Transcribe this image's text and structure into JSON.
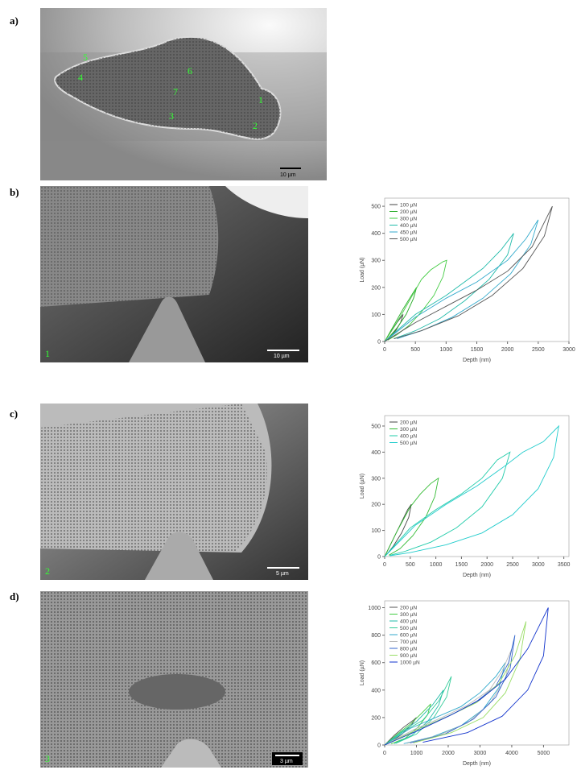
{
  "panels": [
    {
      "label": "a)",
      "scale_bar": "10 µm",
      "markers": [
        "5",
        "4",
        "6",
        "7",
        "3",
        "1",
        "2"
      ]
    },
    {
      "label": "b)",
      "scale_bar": "10 µm",
      "marker": "1"
    },
    {
      "label": "c)",
      "scale_bar": "5 µm",
      "marker": "2"
    },
    {
      "label": "d)",
      "scale_bar": "3 µm",
      "marker": "3"
    }
  ],
  "chart_data": [
    {
      "type": "line",
      "x_label": "Depth (nm)",
      "y_label": "Load (µN)",
      "xlim": [
        0,
        3000
      ],
      "ylim": [
        0,
        530
      ],
      "xticks": [
        0,
        500,
        1000,
        1500,
        2000,
        2500,
        3000
      ],
      "yticks": [
        0,
        100,
        200,
        300,
        400,
        500
      ],
      "series": [
        {
          "name": "100 µN",
          "color": "#444444",
          "x": [
            0,
            100,
            200,
            300,
            260,
            180,
            80,
            0
          ],
          "y": [
            0,
            35,
            70,
            100,
            70,
            40,
            15,
            0
          ]
        },
        {
          "name": "200 µN",
          "color": "#22aa22",
          "x": [
            0,
            150,
            300,
            450,
            520,
            470,
            350,
            200,
            50
          ],
          "y": [
            0,
            60,
            120,
            175,
            200,
            160,
            100,
            50,
            10
          ]
        },
        {
          "name": "300 µN",
          "color": "#44cc44",
          "x": [
            0,
            250,
            500,
            600,
            750,
            950,
            1010,
            950,
            800,
            600,
            400,
            200,
            50
          ],
          "y": [
            0,
            90,
            190,
            230,
            265,
            295,
            300,
            240,
            170,
            110,
            60,
            25,
            5
          ]
        },
        {
          "name": "400 µN",
          "color": "#22bbaa",
          "x": [
            0,
            500,
            1000,
            1300,
            1600,
            1900,
            2100,
            2000,
            1700,
            1300,
            900,
            500,
            150
          ],
          "y": [
            0,
            100,
            170,
            220,
            270,
            340,
            400,
            320,
            230,
            150,
            85,
            40,
            10
          ]
        },
        {
          "name": "450 µN",
          "color": "#33aacc",
          "x": [
            0,
            500,
            1000,
            1500,
            2000,
            2300,
            2500,
            2380,
            2050,
            1600,
            1100,
            600,
            200
          ],
          "y": [
            0,
            90,
            160,
            220,
            300,
            380,
            450,
            360,
            250,
            160,
            90,
            40,
            10
          ]
        },
        {
          "name": "500 µN",
          "color": "#555555",
          "x": [
            0,
            500,
            1000,
            1500,
            2000,
            2400,
            2730,
            2600,
            2250,
            1750,
            1200,
            600,
            150
          ],
          "y": [
            0,
            70,
            130,
            190,
            260,
            350,
            500,
            390,
            270,
            170,
            95,
            40,
            10
          ]
        }
      ]
    },
    {
      "type": "line",
      "x_label": "Depth (nm)",
      "y_label": "Load (µN)",
      "xlim": [
        0,
        3600
      ],
      "ylim": [
        0,
        540
      ],
      "xticks": [
        0,
        500,
        1000,
        1500,
        2000,
        2500,
        3000,
        3500
      ],
      "yticks": [
        0,
        100,
        200,
        300,
        400,
        500
      ],
      "series": [
        {
          "name": "200 µN",
          "color": "#444444",
          "x": [
            0,
            150,
            300,
            450,
            520,
            470,
            330,
            170,
            40
          ],
          "y": [
            0,
            60,
            120,
            180,
            200,
            150,
            90,
            40,
            8
          ]
        },
        {
          "name": "300 µN",
          "color": "#33bb33",
          "x": [
            0,
            250,
            500,
            700,
            900,
            1050,
            980,
            800,
            550,
            300,
            80
          ],
          "y": [
            0,
            100,
            190,
            240,
            280,
            300,
            230,
            150,
            80,
            30,
            5
          ]
        },
        {
          "name": "400 µN",
          "color": "#22ccaa",
          "x": [
            0,
            500,
            1000,
            1500,
            1900,
            2200,
            2450,
            2300,
            1900,
            1400,
            900,
            400,
            100
          ],
          "y": [
            0,
            110,
            180,
            240,
            300,
            370,
            400,
            300,
            190,
            110,
            55,
            20,
            5
          ]
        },
        {
          "name": "500 µN",
          "color": "#22cccc",
          "x": [
            0,
            600,
            1200,
            1800,
            2300,
            2700,
            3100,
            3400,
            3300,
            3000,
            2500,
            1900,
            1200,
            500,
            100
          ],
          "y": [
            0,
            120,
            200,
            270,
            340,
            400,
            440,
            500,
            380,
            260,
            160,
            90,
            45,
            15,
            3
          ]
        }
      ]
    },
    {
      "type": "line",
      "x_label": "Depth (nm)",
      "y_label": "Load (µN)",
      "xlim": [
        0,
        5800
      ],
      "ylim": [
        0,
        1050
      ],
      "xticks": [
        0,
        1000,
        2000,
        3000,
        4000,
        5000
      ],
      "yticks": [
        0,
        200,
        400,
        600,
        800,
        1000
      ],
      "series": [
        {
          "name": "200 µN",
          "color": "#555555",
          "x": [
            0,
            300,
            600,
            900,
            1000,
            850,
            550,
            250,
            50
          ],
          "y": [
            0,
            70,
            130,
            180,
            200,
            150,
            80,
            30,
            5
          ]
        },
        {
          "name": "300 µN",
          "color": "#44cc44",
          "x": [
            0,
            400,
            800,
            1200,
            1450,
            1350,
            1050,
            650,
            200
          ],
          "y": [
            0,
            80,
            150,
            240,
            300,
            220,
            130,
            50,
            8
          ]
        },
        {
          "name": "400 µN",
          "color": "#22bbaa",
          "x": [
            0,
            500,
            1000,
            1500,
            1850,
            1700,
            1350,
            850,
            300
          ],
          "y": [
            0,
            90,
            170,
            290,
            400,
            290,
            170,
            70,
            10
          ]
        },
        {
          "name": "500 µN",
          "color": "#33cc99",
          "x": [
            0,
            600,
            1200,
            1700,
            2100,
            1950,
            1550,
            1000,
            350
          ],
          "y": [
            0,
            100,
            180,
            320,
            500,
            350,
            200,
            80,
            12
          ]
        },
        {
          "name": "600 µN",
          "color": "#33aacc",
          "x": [
            0,
            800,
            1600,
            2400,
            3000,
            3500,
            3800,
            3600,
            3100,
            2400,
            1500,
            600
          ],
          "y": [
            0,
            120,
            200,
            280,
            380,
            500,
            600,
            420,
            260,
            140,
            60,
            10
          ]
        },
        {
          "name": "700 µN",
          "color": "#bbbbbb",
          "x": [
            0,
            900,
            1800,
            2600,
            3300,
            3700,
            4000,
            3800,
            3300,
            2600,
            1700,
            700
          ],
          "y": [
            0,
            110,
            200,
            290,
            400,
            540,
            700,
            480,
            300,
            160,
            70,
            12
          ]
        },
        {
          "name": "800 µN",
          "color": "#3366cc",
          "x": [
            0,
            1000,
            2000,
            2800,
            3500,
            3900,
            4100,
            3950,
            3500,
            2800,
            1900,
            800
          ],
          "y": [
            0,
            110,
            210,
            300,
            430,
            600,
            800,
            560,
            350,
            190,
            80,
            15
          ]
        },
        {
          "name": "900 µN",
          "color": "#99dd66",
          "x": [
            0,
            1000,
            2000,
            2900,
            3600,
            4100,
            4450,
            4250,
            3800,
            3100,
            2100,
            900
          ],
          "y": [
            0,
            110,
            210,
            310,
            450,
            650,
            900,
            620,
            380,
            200,
            90,
            15
          ]
        },
        {
          "name": "1000 µN",
          "color": "#1133cc",
          "x": [
            0,
            1100,
            2100,
            3000,
            3800,
            4500,
            5150,
            5000,
            4500,
            3700,
            2600,
            1200
          ],
          "y": [
            0,
            110,
            220,
            330,
            480,
            700,
            1000,
            650,
            400,
            210,
            90,
            20
          ]
        }
      ]
    }
  ]
}
